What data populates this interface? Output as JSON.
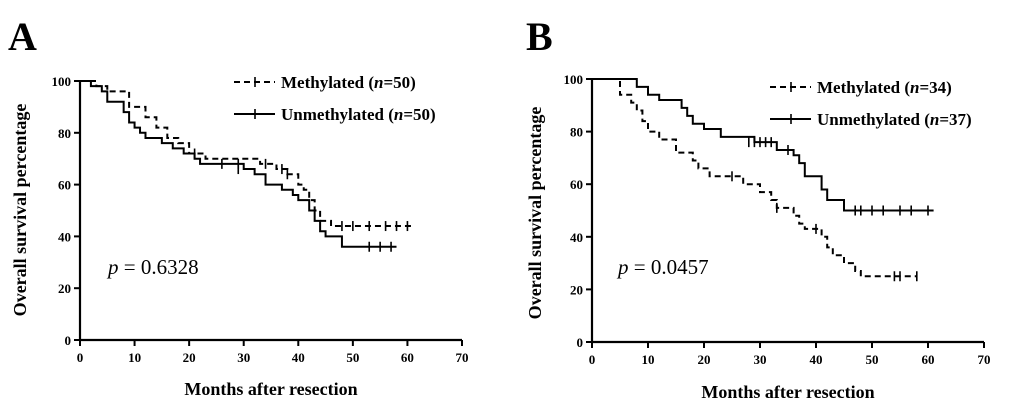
{
  "chart_data": [
    {
      "type": "line",
      "panel": "A",
      "xlabel": "Months after resection",
      "ylabel": "Overall survival percentage",
      "xlim": [
        0,
        70
      ],
      "ylim": [
        0,
        100
      ],
      "xticks": [
        0,
        10,
        20,
        30,
        40,
        50,
        60,
        70
      ],
      "yticks": [
        0,
        20,
        40,
        60,
        80,
        100
      ],
      "annotation": {
        "prefix": "p",
        "value": "= 0.6328"
      },
      "legend_position": "top-right",
      "series": [
        {
          "name": "Methylated",
          "n_label": "n",
          "n_value": "=50)",
          "style": "dashed",
          "steps": [
            [
              0,
              100
            ],
            [
              3,
              98
            ],
            [
              5,
              96
            ],
            [
              9,
              90
            ],
            [
              12,
              86
            ],
            [
              14,
              82
            ],
            [
              16,
              78
            ],
            [
              18,
              76
            ],
            [
              20,
              72
            ],
            [
              23,
              70
            ],
            [
              33,
              68
            ],
            [
              36,
              66
            ],
            [
              38,
              64
            ],
            [
              40,
              60
            ],
            [
              41,
              58
            ],
            [
              42,
              54
            ],
            [
              43,
              50
            ],
            [
              44,
              46
            ],
            [
              46,
              44
            ],
            [
              61,
              44
            ]
          ],
          "censored": [
            [
              21,
              72
            ],
            [
              29,
              68
            ],
            [
              34,
              68
            ],
            [
              37,
              66
            ],
            [
              38,
              64
            ],
            [
              48,
              44
            ],
            [
              50,
              44
            ],
            [
              53,
              44
            ],
            [
              56,
              44
            ],
            [
              58,
              44
            ],
            [
              60,
              44
            ]
          ]
        },
        {
          "name": "Unmethylated",
          "n_label": "n",
          "n_value": "=50)",
          "style": "solid",
          "steps": [
            [
              0,
              100
            ],
            [
              2,
              98
            ],
            [
              4,
              96
            ],
            [
              5,
              92
            ],
            [
              8,
              88
            ],
            [
              9,
              84
            ],
            [
              10,
              82
            ],
            [
              11,
              80
            ],
            [
              12,
              78
            ],
            [
              15,
              76
            ],
            [
              17,
              74
            ],
            [
              19,
              72
            ],
            [
              21,
              70
            ],
            [
              22,
              68
            ],
            [
              30,
              66
            ],
            [
              32,
              64
            ],
            [
              34,
              60
            ],
            [
              37,
              58
            ],
            [
              39,
              56
            ],
            [
              40,
              54
            ],
            [
              42,
              50
            ],
            [
              43,
              46
            ],
            [
              44,
              42
            ],
            [
              45,
              40
            ],
            [
              48,
              36
            ],
            [
              58,
              36
            ]
          ],
          "censored": [
            [
              26,
              68
            ],
            [
              29,
              66
            ],
            [
              53,
              36
            ],
            [
              55,
              36
            ],
            [
              57,
              36
            ]
          ]
        }
      ]
    },
    {
      "type": "line",
      "panel": "B",
      "xlabel": "Months after resection",
      "ylabel": "Overall survival percentage",
      "xlim": [
        0,
        70
      ],
      "ylim": [
        0,
        100
      ],
      "xticks": [
        0,
        10,
        20,
        30,
        40,
        50,
        60,
        70
      ],
      "yticks": [
        0,
        20,
        40,
        60,
        80,
        100
      ],
      "annotation": {
        "prefix": "p",
        "value": "= 0.0457"
      },
      "legend_position": "top-right",
      "series": [
        {
          "name": "Methylated",
          "n_label": "n",
          "n_value": "=34)",
          "style": "dashed",
          "steps": [
            [
              0,
              100
            ],
            [
              5,
              94
            ],
            [
              7,
              91
            ],
            [
              8,
              88
            ],
            [
              9,
              84
            ],
            [
              10,
              80
            ],
            [
              12,
              77
            ],
            [
              15,
              72
            ],
            [
              18,
              69
            ],
            [
              19,
              66
            ],
            [
              21,
              63
            ],
            [
              27,
              60
            ],
            [
              30,
              57
            ],
            [
              32,
              54
            ],
            [
              33,
              51
            ],
            [
              36,
              48
            ],
            [
              37,
              45
            ],
            [
              38,
              43
            ],
            [
              41,
              40
            ],
            [
              42,
              36
            ],
            [
              43,
              33
            ],
            [
              45,
              30
            ],
            [
              47,
              27
            ],
            [
              48,
              25
            ],
            [
              58,
              25
            ]
          ],
          "censored": [
            [
              25,
              63
            ],
            [
              33,
              51
            ],
            [
              40,
              43
            ],
            [
              54,
              25
            ],
            [
              55,
              25
            ],
            [
              58,
              25
            ]
          ]
        },
        {
          "name": "Unmethylated",
          "n_label": "n",
          "n_value": "=37)",
          "style": "solid",
          "steps": [
            [
              0,
              100
            ],
            [
              8,
              97
            ],
            [
              10,
              94
            ],
            [
              12,
              92
            ],
            [
              16,
              89
            ],
            [
              17,
              86
            ],
            [
              18,
              83
            ],
            [
              20,
              81
            ],
            [
              23,
              78
            ],
            [
              29,
              76
            ],
            [
              33,
              73
            ],
            [
              36,
              71
            ],
            [
              37,
              68
            ],
            [
              38,
              63
            ],
            [
              41,
              58
            ],
            [
              42,
              54
            ],
            [
              45,
              50
            ],
            [
              61,
              50
            ]
          ],
          "censored": [
            [
              28,
              76
            ],
            [
              29,
              76
            ],
            [
              30,
              76
            ],
            [
              31,
              76
            ],
            [
              32,
              76
            ],
            [
              35,
              73
            ],
            [
              47,
              50
            ],
            [
              48,
              50
            ],
            [
              50,
              50
            ],
            [
              52,
              50
            ],
            [
              55,
              50
            ],
            [
              57,
              50
            ],
            [
              60,
              50
            ]
          ]
        }
      ]
    }
  ]
}
